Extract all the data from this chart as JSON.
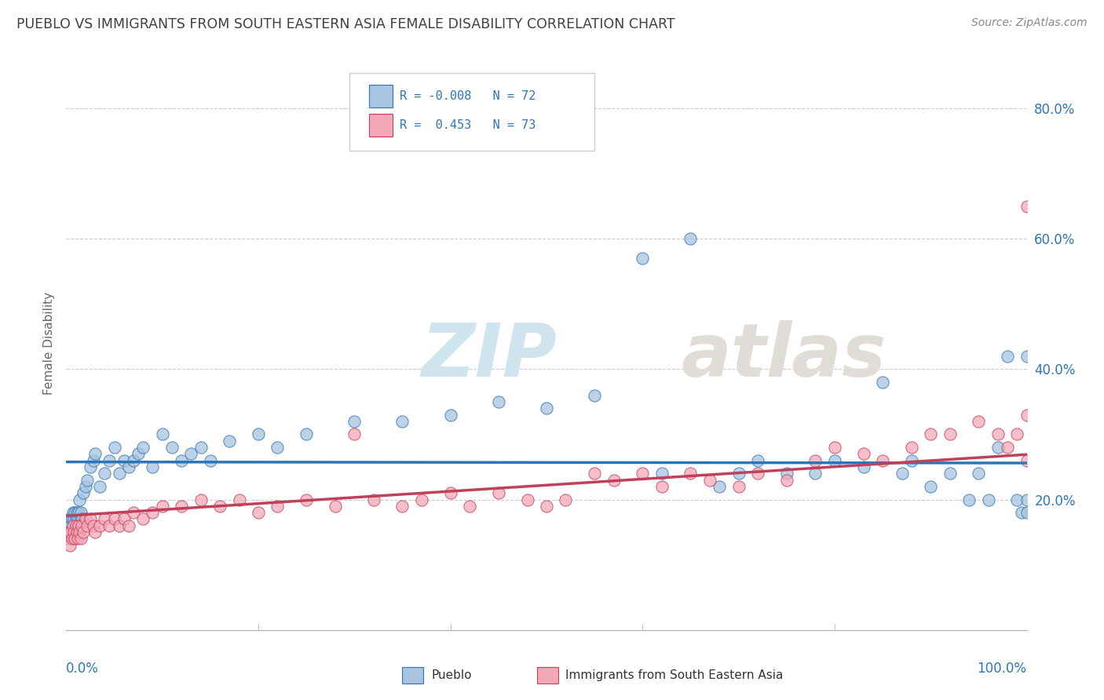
{
  "title": "PUEBLO VS IMMIGRANTS FROM SOUTH EASTERN ASIA FEMALE DISABILITY CORRELATION CHART",
  "source": "Source: ZipAtlas.com",
  "ylabel": "Female Disability",
  "r_pueblo": -0.008,
  "n_pueblo": 72,
  "r_immigrants": 0.453,
  "n_immigrants": 73,
  "pueblo_color": "#a8c4e0",
  "immigrants_color": "#f4a8b8",
  "pueblo_line_color": "#2E75B6",
  "immigrants_line_color": "#c0405a",
  "background_color": "#ffffff",
  "grid_color": "#c0c0c0",
  "title_color": "#404040",
  "xlim": [
    0,
    100
  ],
  "ylim": [
    0,
    88
  ],
  "pueblo_scatter_x": [
    0.3,
    0.4,
    0.5,
    0.6,
    0.7,
    0.8,
    0.9,
    1.0,
    1.1,
    1.2,
    1.3,
    1.4,
    1.5,
    1.6,
    1.8,
    2.0,
    2.2,
    2.5,
    2.8,
    3.0,
    3.5,
    4.0,
    4.5,
    5.0,
    5.5,
    6.0,
    6.5,
    7.0,
    7.5,
    8.0,
    9.0,
    10.0,
    11.0,
    12.0,
    13.0,
    14.0,
    15.0,
    17.0,
    20.0,
    22.0,
    25.0,
    30.0,
    35.0,
    40.0,
    45.0,
    50.0,
    55.0,
    60.0,
    62.0,
    65.0,
    68.0,
    70.0,
    72.0,
    75.0,
    78.0,
    80.0,
    83.0,
    85.0,
    87.0,
    88.0,
    90.0,
    92.0,
    94.0,
    95.0,
    96.0,
    97.0,
    98.0,
    99.0,
    99.5,
    100.0,
    100.0,
    100.0
  ],
  "pueblo_scatter_y": [
    16.0,
    17.0,
    16.0,
    17.0,
    18.0,
    17.0,
    18.0,
    17.0,
    18.0,
    17.0,
    18.0,
    20.0,
    18.0,
    17.0,
    21.0,
    22.0,
    23.0,
    25.0,
    26.0,
    27.0,
    22.0,
    24.0,
    26.0,
    28.0,
    24.0,
    26.0,
    25.0,
    26.0,
    27.0,
    28.0,
    25.0,
    30.0,
    28.0,
    26.0,
    27.0,
    28.0,
    26.0,
    29.0,
    30.0,
    28.0,
    30.0,
    32.0,
    32.0,
    33.0,
    35.0,
    34.0,
    36.0,
    57.0,
    24.0,
    60.0,
    22.0,
    24.0,
    26.0,
    24.0,
    24.0,
    26.0,
    25.0,
    38.0,
    24.0,
    26.0,
    22.0,
    24.0,
    20.0,
    24.0,
    20.0,
    28.0,
    42.0,
    20.0,
    18.0,
    20.0,
    18.0,
    42.0
  ],
  "immigrants_scatter_x": [
    0.2,
    0.3,
    0.4,
    0.5,
    0.6,
    0.7,
    0.8,
    0.9,
    1.0,
    1.1,
    1.2,
    1.3,
    1.4,
    1.5,
    1.6,
    1.8,
    2.0,
    2.2,
    2.5,
    2.8,
    3.0,
    3.5,
    4.0,
    4.5,
    5.0,
    5.5,
    6.0,
    6.5,
    7.0,
    8.0,
    9.0,
    10.0,
    12.0,
    14.0,
    16.0,
    18.0,
    20.0,
    22.0,
    25.0,
    28.0,
    30.0,
    32.0,
    35.0,
    37.0,
    40.0,
    42.0,
    45.0,
    48.0,
    50.0,
    52.0,
    55.0,
    57.0,
    60.0,
    62.0,
    65.0,
    67.0,
    70.0,
    72.0,
    75.0,
    78.0,
    80.0,
    83.0,
    85.0,
    88.0,
    90.0,
    92.0,
    95.0,
    97.0,
    98.0,
    99.0,
    100.0,
    100.0,
    100.0
  ],
  "immigrants_scatter_y": [
    14.0,
    15.0,
    13.0,
    15.0,
    14.0,
    16.0,
    15.0,
    14.0,
    16.0,
    15.0,
    14.0,
    16.0,
    15.0,
    14.0,
    16.0,
    15.0,
    17.0,
    16.0,
    17.0,
    16.0,
    15.0,
    16.0,
    17.0,
    16.0,
    17.0,
    16.0,
    17.0,
    16.0,
    18.0,
    17.0,
    18.0,
    19.0,
    19.0,
    20.0,
    19.0,
    20.0,
    18.0,
    19.0,
    20.0,
    19.0,
    30.0,
    20.0,
    19.0,
    20.0,
    21.0,
    19.0,
    21.0,
    20.0,
    19.0,
    20.0,
    24.0,
    23.0,
    24.0,
    22.0,
    24.0,
    23.0,
    22.0,
    24.0,
    23.0,
    26.0,
    28.0,
    27.0,
    26.0,
    28.0,
    30.0,
    30.0,
    32.0,
    30.0,
    28.0,
    30.0,
    65.0,
    26.0,
    33.0
  ]
}
